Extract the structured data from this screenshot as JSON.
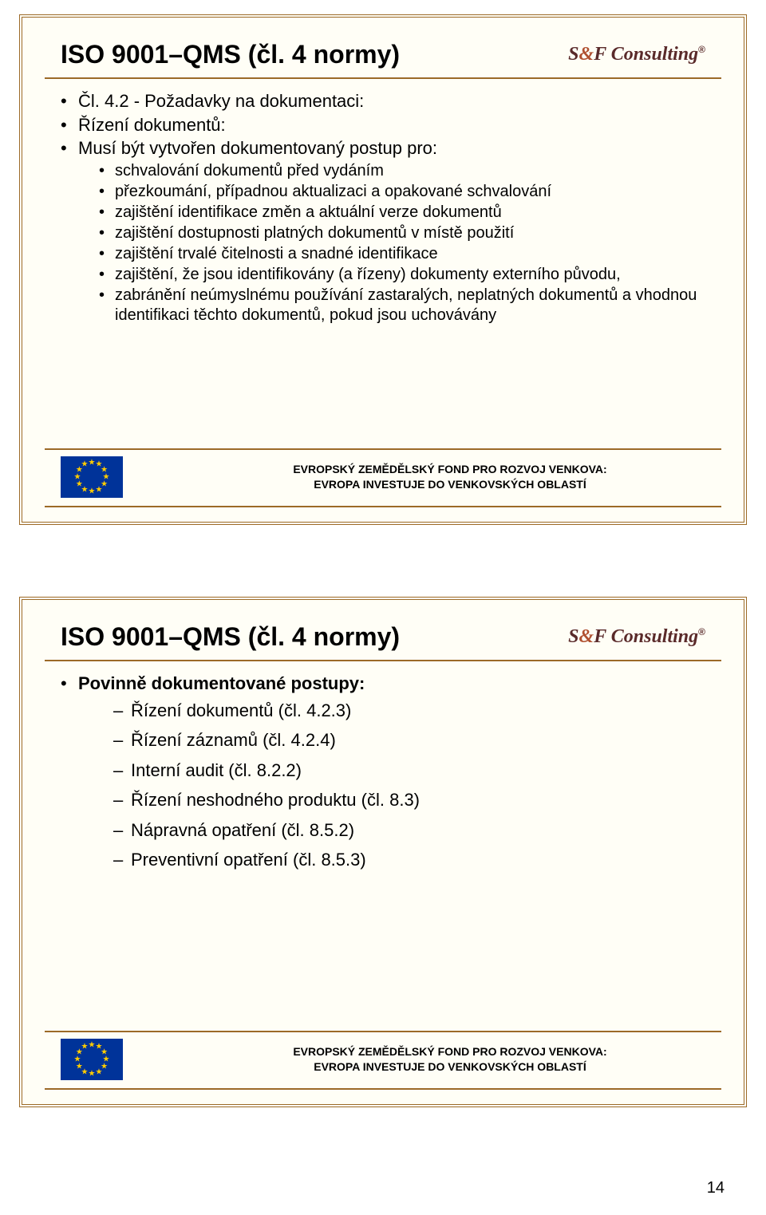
{
  "colors": {
    "border": "#9c6a28",
    "slide_bg": "#fffef6",
    "flag_bg": "#003399",
    "star": "#ffcc00",
    "logo_text": "#5a2a2a",
    "logo_amp": "#b05030"
  },
  "logo": {
    "text_before": "S",
    "amp": "&",
    "text_after": "F Consulting",
    "tm": "®"
  },
  "slide1": {
    "title": "ISO 9001–QMS (čl. 4 normy)",
    "items": [
      {
        "text": "Čl. 4.2 - Požadavky na dokumentaci:",
        "bold": false,
        "sub": [
          {
            "text": "Řízení dokumentů:"
          },
          {
            "text": "Musí být vytvořen dokumentovaný postup pro:"
          }
        ]
      }
    ],
    "sub2": [
      "schvalování dokumentů před vydáním",
      "přezkoumání, případnou aktualizaci a opakované schvalování",
      "zajištění identifikace změn a aktuální verze dokumentů",
      "zajištění dostupnosti platných dokumentů v místě použití",
      "zajištění trvalé čitelnosti a snadné identifikace",
      "zajištění, že jsou identifikovány (a řízeny) dokumenty externího původu,",
      "zabránění neúmyslnému používání zastaralých, neplatných dokumentů a vhodnou identifikaci těchto dokumentů, pokud jsou uchovávány"
    ]
  },
  "slide2": {
    "title": "ISO 9001–QMS (čl. 4 normy)",
    "heading": "Povinně dokumentované postupy:",
    "items": [
      "Řízení dokumentů (čl. 4.2.3)",
      "Řízení záznamů (čl. 4.2.4)",
      "Interní audit (čl. 8.2.2)",
      "Řízení neshodného produktu (čl. 8.3)",
      "Nápravná opatření (čl. 8.5.2)",
      "Preventivní opatření (čl. 8.5.3)"
    ]
  },
  "footer": {
    "line1": "EVROPSKÝ ZEMĚDĚLSKÝ FOND PRO ROZVOJ VENKOVA:",
    "line2": "EVROPA INVESTUJE DO VENKOVSKÝCH OBLASTÍ"
  },
  "page_number": "14"
}
